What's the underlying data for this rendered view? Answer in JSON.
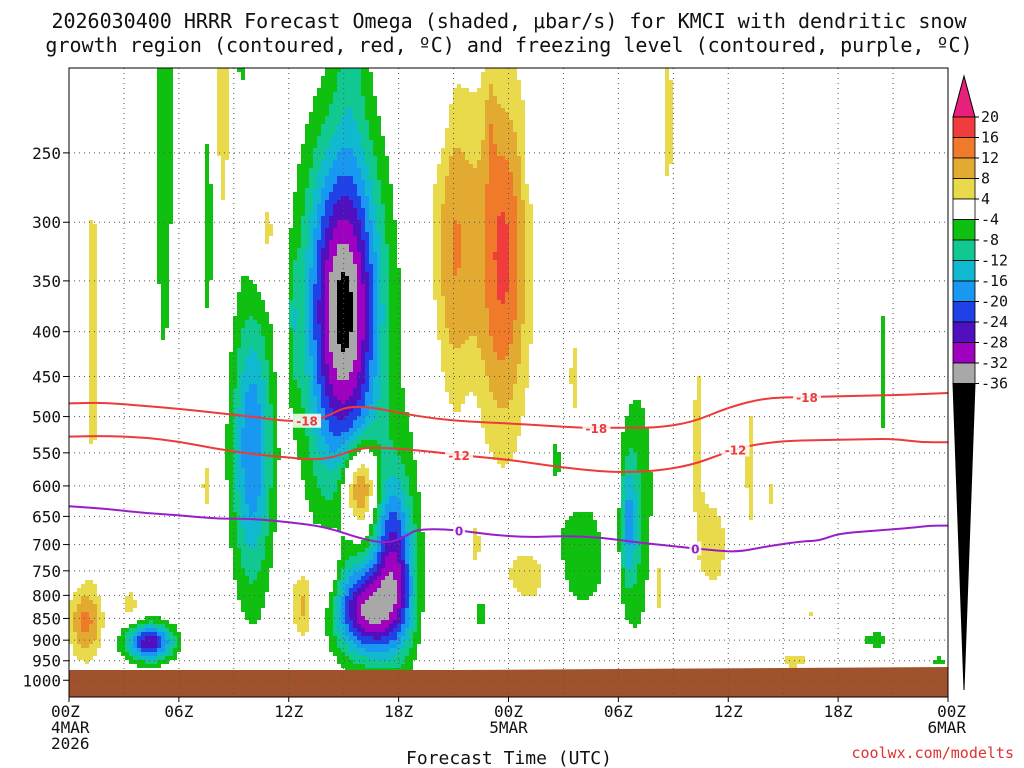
{
  "title_line1": "2026030400 HRRR Forecast Omega (shaded, μbar/s) for KMCI with dendritic snow",
  "title_line2": "growth region (contoured, red, ºC) and freezing level (contoured, purple, ºC)",
  "credit": "coolwx.com/modelts",
  "chart_data": {
    "type": "heatmap",
    "title": "2026030400 HRRR Forecast Omega (shaded, μbar/s) for KMCI with dendritic snow growth region (contoured, red, ºC) and freezing level (contoured, purple, ºC)",
    "xlabel": "Forecast Time (UTC)",
    "ylabel": "",
    "xlim": [
      0,
      48
    ],
    "ylim_hPa": [
      1000,
      200
    ],
    "x_ticks": [
      {
        "h": 0,
        "label": "00Z",
        "date1": "4MAR",
        "date2": "2026"
      },
      {
        "h": 6,
        "label": "06Z"
      },
      {
        "h": 12,
        "label": "12Z"
      },
      {
        "h": 18,
        "label": "18Z"
      },
      {
        "h": 24,
        "label": "00Z",
        "date1": "5MAR"
      },
      {
        "h": 30,
        "label": "06Z"
      },
      {
        "h": 36,
        "label": "12Z"
      },
      {
        "h": 42,
        "label": "18Z"
      },
      {
        "h": 48,
        "label": "00Z",
        "date1": "6MAR"
      }
    ],
    "y_ticks": [
      250,
      300,
      350,
      400,
      450,
      500,
      550,
      600,
      650,
      700,
      750,
      800,
      850,
      900,
      950,
      1000
    ],
    "colorbar": {
      "labels": [
        "20",
        "16",
        "12",
        "8",
        "4",
        "-4",
        "-8",
        "-12",
        "-16",
        "-20",
        "-24",
        "-28",
        "-32",
        "-36"
      ],
      "levels": [
        {
          "from": 20,
          "to": 99,
          "color": "#e8207a"
        },
        {
          "from": 16,
          "to": 20,
          "color": "#f03c3c"
        },
        {
          "from": 12,
          "to": 16,
          "color": "#ee7a2a"
        },
        {
          "from": 8,
          "to": 12,
          "color": "#e3aa32"
        },
        {
          "from": 4,
          "to": 8,
          "color": "#e8da4a"
        },
        {
          "from": -4,
          "to": 4,
          "color": "#ffffff"
        },
        {
          "from": -8,
          "to": -4,
          "color": "#10c010"
        },
        {
          "from": -12,
          "to": -8,
          "color": "#10c890"
        },
        {
          "from": -16,
          "to": -12,
          "color": "#10b8d0"
        },
        {
          "from": -20,
          "to": -16,
          "color": "#1898f0"
        },
        {
          "from": -24,
          "to": -20,
          "color": "#2040e8"
        },
        {
          "from": -28,
          "to": -24,
          "color": "#5010c0"
        },
        {
          "from": -32,
          "to": -28,
          "color": "#a000c0"
        },
        {
          "from": -36,
          "to": -32,
          "color": "#a8a8a8"
        },
        {
          "from": -99,
          "to": -36,
          "color": "#000000"
        }
      ]
    },
    "omega_blobs": [
      {
        "h": 15.0,
        "p": 380,
        "rx": 2.0,
        "ry": 210,
        "peak": -38
      },
      {
        "h": 15.4,
        "p": 175,
        "rx": 0.9,
        "ry": 60,
        "peak": -7
      },
      {
        "h": 10.0,
        "p": 545,
        "rx": 1.1,
        "ry": 240,
        "peak": -20
      },
      {
        "h": 5.2,
        "p": 235,
        "rx": 0.55,
        "ry": 260,
        "peak": -7
      },
      {
        "h": 9.4,
        "p": 150,
        "rx": 0.4,
        "ry": 110,
        "peak": -6
      },
      {
        "h": 7.6,
        "p": 300,
        "rx": 0.35,
        "ry": 130,
        "peak": -6
      },
      {
        "h": 4.4,
        "p": 905,
        "rx": 1.3,
        "ry": 45,
        "peak": -27
      },
      {
        "h": 16.2,
        "p": 835,
        "rx": 1.6,
        "ry": 105,
        "peak": -30
      },
      {
        "h": 17.6,
        "p": 720,
        "rx": 1.0,
        "ry": 190,
        "peak": -23
      },
      {
        "h": 19.3,
        "p": 460,
        "rx": 0.9,
        "ry": 240,
        "peak": -6
      },
      {
        "h": 18.4,
        "p": 790,
        "rx": 0.8,
        "ry": 160,
        "peak": -8
      },
      {
        "h": 22.0,
        "p": 530,
        "rx": 0.35,
        "ry": 50,
        "peak": -6
      },
      {
        "h": 26.6,
        "p": 560,
        "rx": 0.3,
        "ry": 35,
        "peak": -6
      },
      {
        "h": 28.0,
        "p": 720,
        "rx": 1.6,
        "ry": 110,
        "peak": -8
      },
      {
        "h": 31.0,
        "p": 640,
        "rx": 1.0,
        "ry": 270,
        "peak": -8
      },
      {
        "h": 30.5,
        "p": 660,
        "rx": 0.45,
        "ry": 110,
        "peak": -12
      },
      {
        "h": 20.3,
        "p": 195,
        "rx": 0.5,
        "ry": 65,
        "peak": -5
      },
      {
        "h": 25.4,
        "p": 260,
        "rx": 0.45,
        "ry": 18,
        "peak": -6
      },
      {
        "h": 44.4,
        "p": 445,
        "rx": 0.18,
        "ry": 130,
        "peak": -6
      },
      {
        "h": 44.1,
        "p": 900,
        "rx": 0.9,
        "ry": 25,
        "peak": -6
      },
      {
        "h": 34.0,
        "p": 300,
        "rx": 0.35,
        "ry": 120,
        "peak": -6
      },
      {
        "h": 13.4,
        "p": 820,
        "rx": 0.3,
        "ry": 55,
        "peak": -6
      },
      {
        "h": 12.3,
        "p": 390,
        "rx": 0.3,
        "ry": 70,
        "peak": -6
      },
      {
        "h": 22.5,
        "p": 840,
        "rx": 0.3,
        "ry": 50,
        "peak": -6
      },
      {
        "h": 36.7,
        "p": 680,
        "rx": 0.12,
        "ry": 35,
        "peak": -6
      },
      {
        "h": 47.5,
        "p": 950,
        "rx": 0.5,
        "ry": 12,
        "peak": -6
      },
      {
        "h": 23.0,
        "p": 230,
        "rx": 0.3,
        "ry": 40,
        "peak": 4
      },
      {
        "h": 23.7,
        "p": 330,
        "rx": 1.4,
        "ry": 190,
        "peak": 17
      },
      {
        "h": 21.0,
        "p": 320,
        "rx": 1.3,
        "ry": 160,
        "peak": 12
      },
      {
        "h": 15.9,
        "p": 600,
        "rx": 1.0,
        "ry": 75,
        "peak": 22
      },
      {
        "h": 0.9,
        "p": 860,
        "rx": 0.9,
        "ry": 85,
        "peak": 13
      },
      {
        "h": 1.3,
        "p": 400,
        "rx": 0.45,
        "ry": 250,
        "peak": 6
      },
      {
        "h": 3.3,
        "p": 820,
        "rx": 0.55,
        "ry": 40,
        "peak": 6
      },
      {
        "h": 7.5,
        "p": 600,
        "rx": 0.3,
        "ry": 50,
        "peak": 6
      },
      {
        "h": 8.4,
        "p": 220,
        "rx": 0.45,
        "ry": 110,
        "peak": 6
      },
      {
        "h": 10.8,
        "p": 310,
        "rx": 0.7,
        "ry": 45,
        "peak": 6
      },
      {
        "h": 11.7,
        "p": 420,
        "rx": 0.35,
        "ry": 70,
        "peak": 6
      },
      {
        "h": 12.9,
        "p": 820,
        "rx": 0.8,
        "ry": 80,
        "peak": 10
      },
      {
        "h": 14.2,
        "p": 740,
        "rx": 0.6,
        "ry": 65,
        "peak": 8
      },
      {
        "h": 19.3,
        "p": 440,
        "rx": 0.55,
        "ry": 150,
        "peak": 6
      },
      {
        "h": 22.2,
        "p": 700,
        "rx": 0.3,
        "ry": 40,
        "peak": 6
      },
      {
        "h": 25.2,
        "p": 760,
        "rx": 1.5,
        "ry": 70,
        "peak": 6
      },
      {
        "h": 27.6,
        "p": 450,
        "rx": 0.3,
        "ry": 60,
        "peak": 6
      },
      {
        "h": 29.7,
        "p": 670,
        "rx": 0.55,
        "ry": 120,
        "peak": 6
      },
      {
        "h": 32.2,
        "p": 780,
        "rx": 0.4,
        "ry": 120,
        "peak": 6
      },
      {
        "h": 34.3,
        "p": 500,
        "rx": 0.5,
        "ry": 210,
        "peak": 5
      },
      {
        "h": 35.2,
        "p": 700,
        "rx": 0.9,
        "ry": 110,
        "peak": 6
      },
      {
        "h": 37.2,
        "p": 570,
        "rx": 0.3,
        "ry": 140,
        "peak": 6
      },
      {
        "h": 32.7,
        "p": 230,
        "rx": 0.4,
        "ry": 60,
        "peak": 6
      },
      {
        "h": 34.2,
        "p": 260,
        "rx": 0.4,
        "ry": 60,
        "peak": 6
      },
      {
        "h": 38.4,
        "p": 610,
        "rx": 0.3,
        "ry": 40,
        "peak": 5
      },
      {
        "h": 39.6,
        "p": 950,
        "rx": 0.9,
        "ry": 22,
        "peak": 6
      },
      {
        "h": 40.6,
        "p": 840,
        "rx": 0.25,
        "ry": 20,
        "peak": 5
      }
    ],
    "dgz_contours": [
      {
        "level": -18,
        "color": "#ee3a3a",
        "label": "-18",
        "label_at_h": [
          13.0,
          28.8,
          40.3
        ],
        "points": [
          [
            0,
            483
          ],
          [
            2,
            482
          ],
          [
            4,
            486
          ],
          [
            6,
            490
          ],
          [
            8,
            495
          ],
          [
            10,
            500
          ],
          [
            11.5,
            505
          ],
          [
            12.5,
            506
          ],
          [
            13.5,
            505
          ],
          [
            14.3,
            497
          ],
          [
            15.2,
            487
          ],
          [
            16.5,
            488
          ],
          [
            18,
            495
          ],
          [
            20,
            503
          ],
          [
            22,
            507
          ],
          [
            24,
            509
          ],
          [
            26,
            512
          ],
          [
            28,
            515
          ],
          [
            30,
            515
          ],
          [
            32,
            515
          ],
          [
            34,
            508
          ],
          [
            36,
            488
          ],
          [
            38,
            476
          ],
          [
            40,
            475
          ],
          [
            42,
            474
          ],
          [
            44,
            473
          ],
          [
            46,
            472
          ],
          [
            48,
            470
          ]
        ]
      },
      {
        "level": -12,
        "color": "#ee3a3a",
        "label": "-12",
        "label_at_h": [
          21.3,
          36.4
        ],
        "points": [
          [
            0,
            527
          ],
          [
            2,
            526
          ],
          [
            4,
            528
          ],
          [
            6,
            534
          ],
          [
            8,
            544
          ],
          [
            10,
            552
          ],
          [
            12,
            557
          ],
          [
            13.5,
            560
          ],
          [
            14.5,
            556
          ],
          [
            15.5,
            546
          ],
          [
            16.5,
            542
          ],
          [
            18,
            544
          ],
          [
            20,
            549
          ],
          [
            22,
            555
          ],
          [
            24,
            560
          ],
          [
            26,
            568
          ],
          [
            28,
            575
          ],
          [
            30,
            579
          ],
          [
            32,
            577
          ],
          [
            34,
            568
          ],
          [
            35.5,
            553
          ],
          [
            37,
            540
          ],
          [
            39,
            533
          ],
          [
            41,
            532
          ],
          [
            43,
            531
          ],
          [
            45,
            530
          ],
          [
            46.5,
            535
          ],
          [
            48,
            535
          ]
        ]
      },
      {
        "level": 0,
        "color": "#9a1ec8",
        "label": "0",
        "label_at_h": [
          21.3,
          34.2
        ],
        "points": [
          [
            0,
            633
          ],
          [
            2,
            637
          ],
          [
            4,
            644
          ],
          [
            6,
            648
          ],
          [
            8,
            654
          ],
          [
            10,
            654
          ],
          [
            12,
            660
          ],
          [
            14,
            668
          ],
          [
            16,
            690
          ],
          [
            17.4,
            698
          ],
          [
            18.4,
            685
          ],
          [
            19,
            672
          ],
          [
            21,
            673
          ],
          [
            23,
            682
          ],
          [
            25,
            687
          ],
          [
            27,
            684
          ],
          [
            29,
            687
          ],
          [
            31,
            696
          ],
          [
            33,
            703
          ],
          [
            35,
            710
          ],
          [
            36.5,
            714
          ],
          [
            38,
            704
          ],
          [
            40,
            694
          ],
          [
            41,
            693
          ],
          [
            42,
            680
          ],
          [
            44,
            675
          ],
          [
            46,
            670
          ],
          [
            47,
            666
          ],
          [
            48,
            666
          ]
        ]
      }
    ]
  }
}
